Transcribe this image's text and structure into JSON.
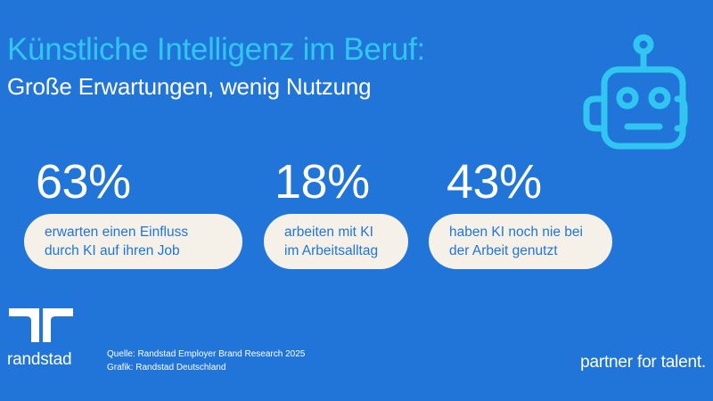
{
  "header": {
    "title": "Künstliche Intelligenz im Beruf:",
    "subtitle": "Große Erwartungen, wenig Nutzung"
  },
  "stats": [
    {
      "value": "63%",
      "label": "erwarten einen Einfluss\ndurch KI auf ihren Job"
    },
    {
      "value": "18%",
      "label": "arbeiten mit KI\nim Arbeitsalltag"
    },
    {
      "value": "43%",
      "label": "haben KI noch nie bei\nder Arbeit genutzt"
    }
  ],
  "footer": {
    "brand": "randstad",
    "source_line": "Quelle: Randstad Employer Brand Research 2025",
    "graphic_line": "Grafik: Randstad Deutschland",
    "tagline": "partner for talent."
  },
  "icons": {
    "illustration": "robot-head-icon",
    "logo": "randstad-logo-icon"
  },
  "colors": {
    "background": "#2175D9",
    "accent": "#31C6F2",
    "pill": "#F5F1E9",
    "text": "#FFFFFF"
  }
}
